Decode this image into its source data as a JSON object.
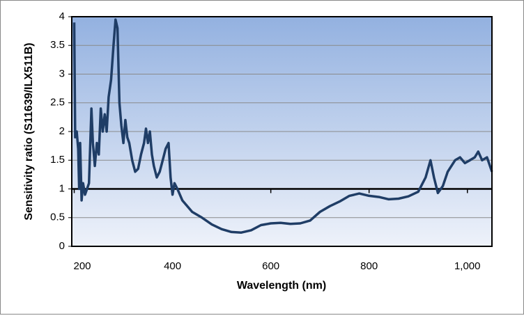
{
  "chart_data": {
    "type": "line",
    "x_label": "Wavelength (nm)",
    "y_label": "Sensitivity ratio (S11639/ILX511B)",
    "xlim": [
      195,
      1050
    ],
    "ylim": [
      0,
      4
    ],
    "xticks": [
      200,
      400,
      600,
      800,
      {
        "value": 1000,
        "label": "1,000"
      }
    ],
    "yticks": [
      0,
      0.5,
      1,
      1.5,
      2,
      2.5,
      3,
      3.5,
      4
    ],
    "x_axis_at": 1,
    "grid": true,
    "x": [
      200,
      202,
      205,
      208,
      210,
      212,
      215,
      218,
      222,
      226,
      230,
      235,
      238,
      242,
      246,
      250,
      254,
      258,
      262,
      266,
      270,
      275,
      280,
      284,
      288,
      292,
      296,
      300,
      304,
      308,
      312,
      318,
      324,
      330,
      336,
      342,
      346,
      350,
      354,
      358,
      362,
      368,
      374,
      380,
      386,
      392,
      396,
      400,
      404,
      410,
      420,
      440,
      460,
      480,
      500,
      520,
      540,
      560,
      580,
      600,
      620,
      640,
      660,
      680,
      700,
      720,
      740,
      760,
      780,
      800,
      820,
      840,
      860,
      880,
      900,
      915,
      925,
      932,
      940,
      950,
      960,
      975,
      985,
      995,
      1005,
      1015,
      1022,
      1030,
      1040,
      1050
    ],
    "series": [
      {
        "name": "Sensitivity ratio",
        "color": "#1f3d66",
        "values": [
          3.9,
          1.9,
          2.0,
          1.7,
          1.0,
          1.8,
          0.8,
          1.1,
          0.9,
          1.0,
          1.1,
          2.4,
          1.8,
          1.4,
          1.8,
          1.6,
          2.4,
          2.0,
          2.3,
          2.0,
          2.6,
          2.9,
          3.5,
          3.95,
          3.8,
          2.5,
          2.1,
          1.8,
          2.2,
          1.9,
          1.8,
          1.5,
          1.3,
          1.35,
          1.6,
          1.8,
          2.05,
          1.8,
          2.0,
          1.6,
          1.4,
          1.2,
          1.3,
          1.5,
          1.7,
          1.8,
          1.2,
          0.9,
          1.1,
          1.0,
          0.8,
          0.6,
          0.5,
          0.38,
          0.3,
          0.25,
          0.24,
          0.28,
          0.37,
          0.4,
          0.41,
          0.39,
          0.4,
          0.45,
          0.6,
          0.7,
          0.78,
          0.88,
          0.92,
          0.88,
          0.86,
          0.82,
          0.83,
          0.87,
          0.95,
          1.2,
          1.5,
          1.2,
          0.93,
          1.05,
          1.3,
          1.5,
          1.55,
          1.45,
          1.5,
          1.55,
          1.65,
          1.5,
          1.55,
          1.3
        ]
      }
    ]
  }
}
